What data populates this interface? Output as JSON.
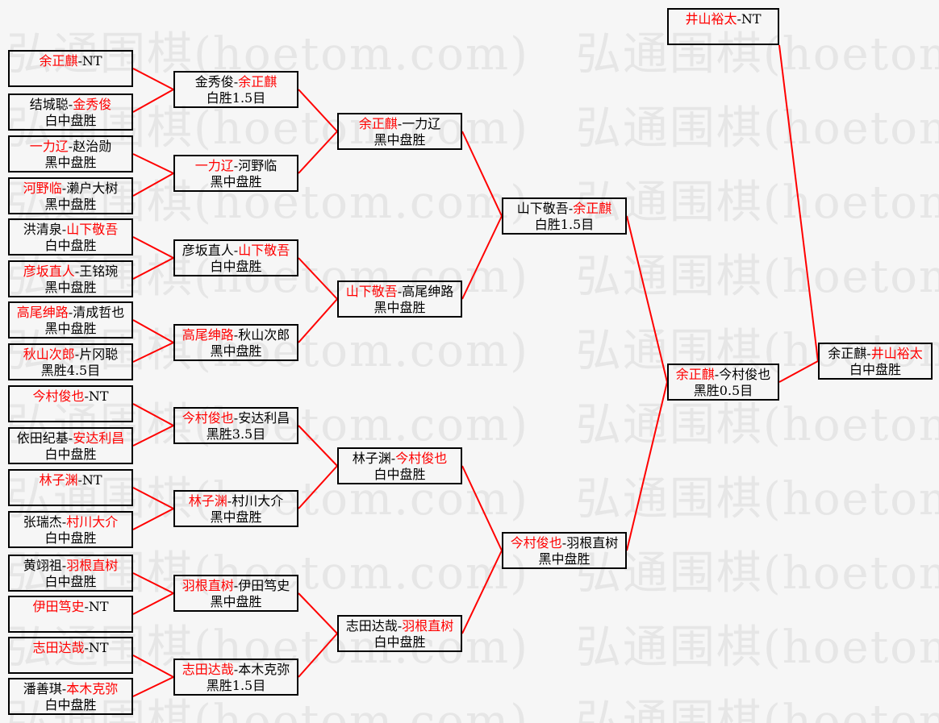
{
  "separator": "-",
  "watermark": {
    "text": "弘通围棋(hoetom.com)",
    "row_text": "弘通围棋(hoetom.com)　弘通围棋(hoetom.com)"
  },
  "colors": {
    "red": "#ff0000",
    "ink": "#000000",
    "border": "#000000",
    "bg": "#f6f6f6",
    "wm": "#e6e6e6"
  },
  "rounds": [
    {
      "name": "round-1",
      "matches": [
        {
          "players": [
            "余正麒",
            "NT"
          ],
          "red": 0,
          "result": ""
        },
        {
          "players": [
            "结城聪",
            "金秀俊"
          ],
          "red": 1,
          "result": "白中盘胜"
        },
        {
          "players": [
            "一力辽",
            "赵治勋"
          ],
          "red": 0,
          "result": "黑中盘胜"
        },
        {
          "players": [
            "河野临",
            "濑户大树"
          ],
          "red": 0,
          "result": "黑中盘胜"
        },
        {
          "players": [
            "洪清泉",
            "山下敬吾"
          ],
          "red": 1,
          "result": "白中盘胜"
        },
        {
          "players": [
            "彦坂直人",
            "王铭琬"
          ],
          "red": 0,
          "result": "黑中盘胜"
        },
        {
          "players": [
            "高尾绅路",
            "清成哲也"
          ],
          "red": 0,
          "result": "黑中盘胜"
        },
        {
          "players": [
            "秋山次郎",
            "片冈聪"
          ],
          "red": 0,
          "result": "黑胜4.5目"
        },
        {
          "players": [
            "今村俊也",
            "NT"
          ],
          "red": 0,
          "result": ""
        },
        {
          "players": [
            "依田纪基",
            "安达利昌"
          ],
          "red": 1,
          "result": "白中盘胜"
        },
        {
          "players": [
            "林子渊",
            "NT"
          ],
          "red": 0,
          "result": ""
        },
        {
          "players": [
            "张瑞杰",
            "村川大介"
          ],
          "red": 1,
          "result": "白中盘胜"
        },
        {
          "players": [
            "黄翊祖",
            "羽根直树"
          ],
          "red": 1,
          "result": "白中盘胜"
        },
        {
          "players": [
            "伊田笃史",
            "NT"
          ],
          "red": 0,
          "result": ""
        },
        {
          "players": [
            "志田达哉",
            "NT"
          ],
          "red": 0,
          "result": ""
        },
        {
          "players": [
            "潘善琪",
            "本木克弥"
          ],
          "red": 1,
          "result": "白中盘胜"
        }
      ]
    },
    {
      "name": "round-2",
      "matches": [
        {
          "players": [
            "金秀俊",
            "余正麒"
          ],
          "red": 1,
          "result": "白胜1.5目"
        },
        {
          "players": [
            "一力辽",
            "河野临"
          ],
          "red": 0,
          "result": "黑中盘胜"
        },
        {
          "players": [
            "彦坂直人",
            "山下敬吾"
          ],
          "red": 1,
          "result": "白中盘胜"
        },
        {
          "players": [
            "高尾绅路",
            "秋山次郎"
          ],
          "red": 0,
          "result": "黑中盘胜"
        },
        {
          "players": [
            "今村俊也",
            "安达利昌"
          ],
          "red": 0,
          "result": "黑胜3.5目"
        },
        {
          "players": [
            "林子渊",
            "村川大介"
          ],
          "red": 0,
          "result": "黑中盘胜"
        },
        {
          "players": [
            "羽根直树",
            "伊田笃史"
          ],
          "red": 0,
          "result": "黑中盘胜"
        },
        {
          "players": [
            "志田达哉",
            "本木克弥"
          ],
          "red": 0,
          "result": "黑胜1.5目"
        }
      ]
    },
    {
      "name": "round-3",
      "matches": [
        {
          "players": [
            "余正麒",
            "一力辽"
          ],
          "red": 0,
          "result": "黑中盘胜"
        },
        {
          "players": [
            "山下敬吾",
            "高尾绅路"
          ],
          "red": 0,
          "result": "黑中盘胜"
        },
        {
          "players": [
            "林子渊",
            "今村俊也"
          ],
          "red": 1,
          "result": "白中盘胜"
        },
        {
          "players": [
            "志田达哉",
            "羽根直树"
          ],
          "red": 1,
          "result": "白中盘胜"
        }
      ]
    },
    {
      "name": "round-4",
      "matches": [
        {
          "players": [
            "山下敬吾",
            "余正麒"
          ],
          "red": 1,
          "result": "白胜1.5目"
        },
        {
          "players": [
            "今村俊也",
            "羽根直树"
          ],
          "red": 0,
          "result": "黑中盘胜"
        }
      ]
    },
    {
      "name": "round-5",
      "matches": [
        {
          "players": [
            "余正麒",
            "今村俊也"
          ],
          "red": 0,
          "result": "黑胜0.5目"
        }
      ]
    }
  ],
  "seed": {
    "players": [
      "井山裕太",
      "NT"
    ],
    "red": 0,
    "result": ""
  },
  "final": {
    "players": [
      "余正麒",
      "井山裕太"
    ],
    "red": 1,
    "result": "白中盘胜"
  }
}
